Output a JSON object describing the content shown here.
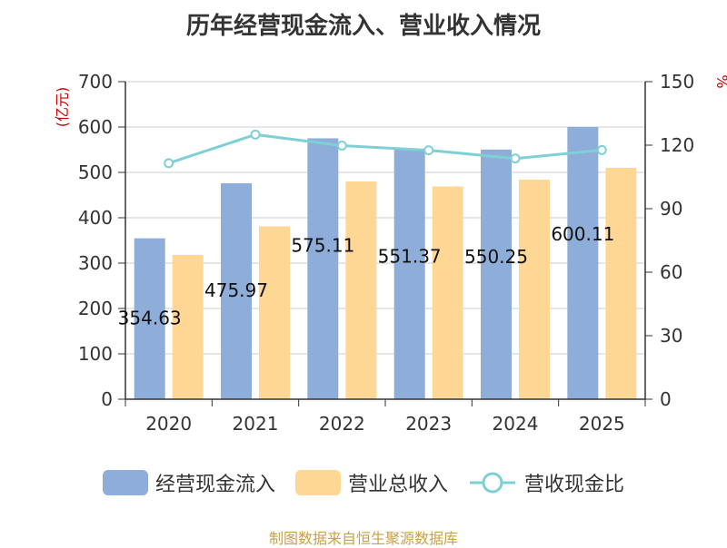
{
  "chart_data": {
    "type": "bar+line",
    "title": "历年经营现金流入、营业收入情况",
    "categories": [
      "2020",
      "2021",
      "2022",
      "2023",
      "2024",
      "2025"
    ],
    "series": [
      {
        "name": "经营现金流入",
        "type": "bar",
        "axis": "left",
        "color": "#8eadd9",
        "values": [
          354.63,
          475.97,
          575.11,
          551.37,
          550.25,
          600.11
        ]
      },
      {
        "name": "营业总收入",
        "type": "bar",
        "axis": "left",
        "color": "#ffd795",
        "values": [
          318,
          381,
          480,
          469,
          484,
          510
        ]
      },
      {
        "name": "营收现金比",
        "type": "line",
        "axis": "right",
        "color": "#7fd0d4",
        "values": [
          111.5,
          125,
          119.8,
          117.6,
          113.7,
          117.7
        ]
      }
    ],
    "data_labels": [
      "354.63",
      "475.97",
      "575.11",
      "551.37",
      "550.25",
      "600.11"
    ],
    "y_left": {
      "unit": "亿元",
      "ylim": [
        0,
        700
      ],
      "ticks": [
        0,
        100,
        200,
        300,
        400,
        500,
        600,
        700
      ]
    },
    "y_right": {
      "unit": "%",
      "ylim": [
        0,
        150
      ],
      "ticks": [
        0,
        30,
        60,
        90,
        120,
        150
      ]
    },
    "legend": [
      "经营现金流入",
      "营业总收入",
      "营收现金比"
    ],
    "legend_position": "bottom",
    "grid": true
  },
  "footer": "制图数据来自恒生聚源数据库"
}
